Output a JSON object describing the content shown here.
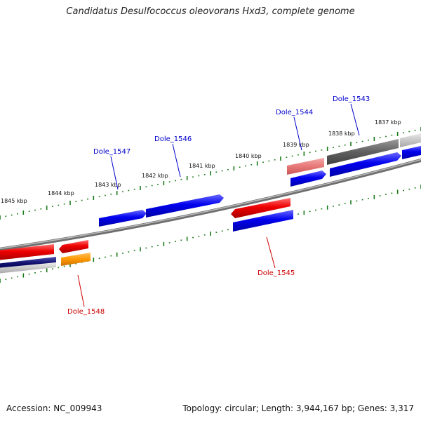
{
  "title": "Candidatus Desulfococcus oleovorans Hxd3, complete genome",
  "footer": {
    "accession": "Accession: NC_009943",
    "topology": "Topology: circular; Length: 3,944,167 bp; Genes: 3,317"
  },
  "scale_labels": [
    "1837 kbp",
    "1838 kbp",
    "1839 kbp",
    "1840 kbp",
    "1841 kbp",
    "1842 kbp",
    "1843 kbp",
    "1844 kbp",
    "1845 kbp"
  ],
  "gene_labels": {
    "forward": [
      "Dole_1543",
      "Dole_1544",
      "Dole_1546",
      "Dole_1547"
    ],
    "reverse": [
      "Dole_1545",
      "Dole_1548"
    ]
  },
  "colors": {
    "forward_label": "#0000cc",
    "reverse_label": "#cc0000",
    "forward_gene": "#0000ee",
    "reverse_gene": "#ee0000",
    "tick": "#1a7a1a",
    "backbone": "#888888"
  }
}
